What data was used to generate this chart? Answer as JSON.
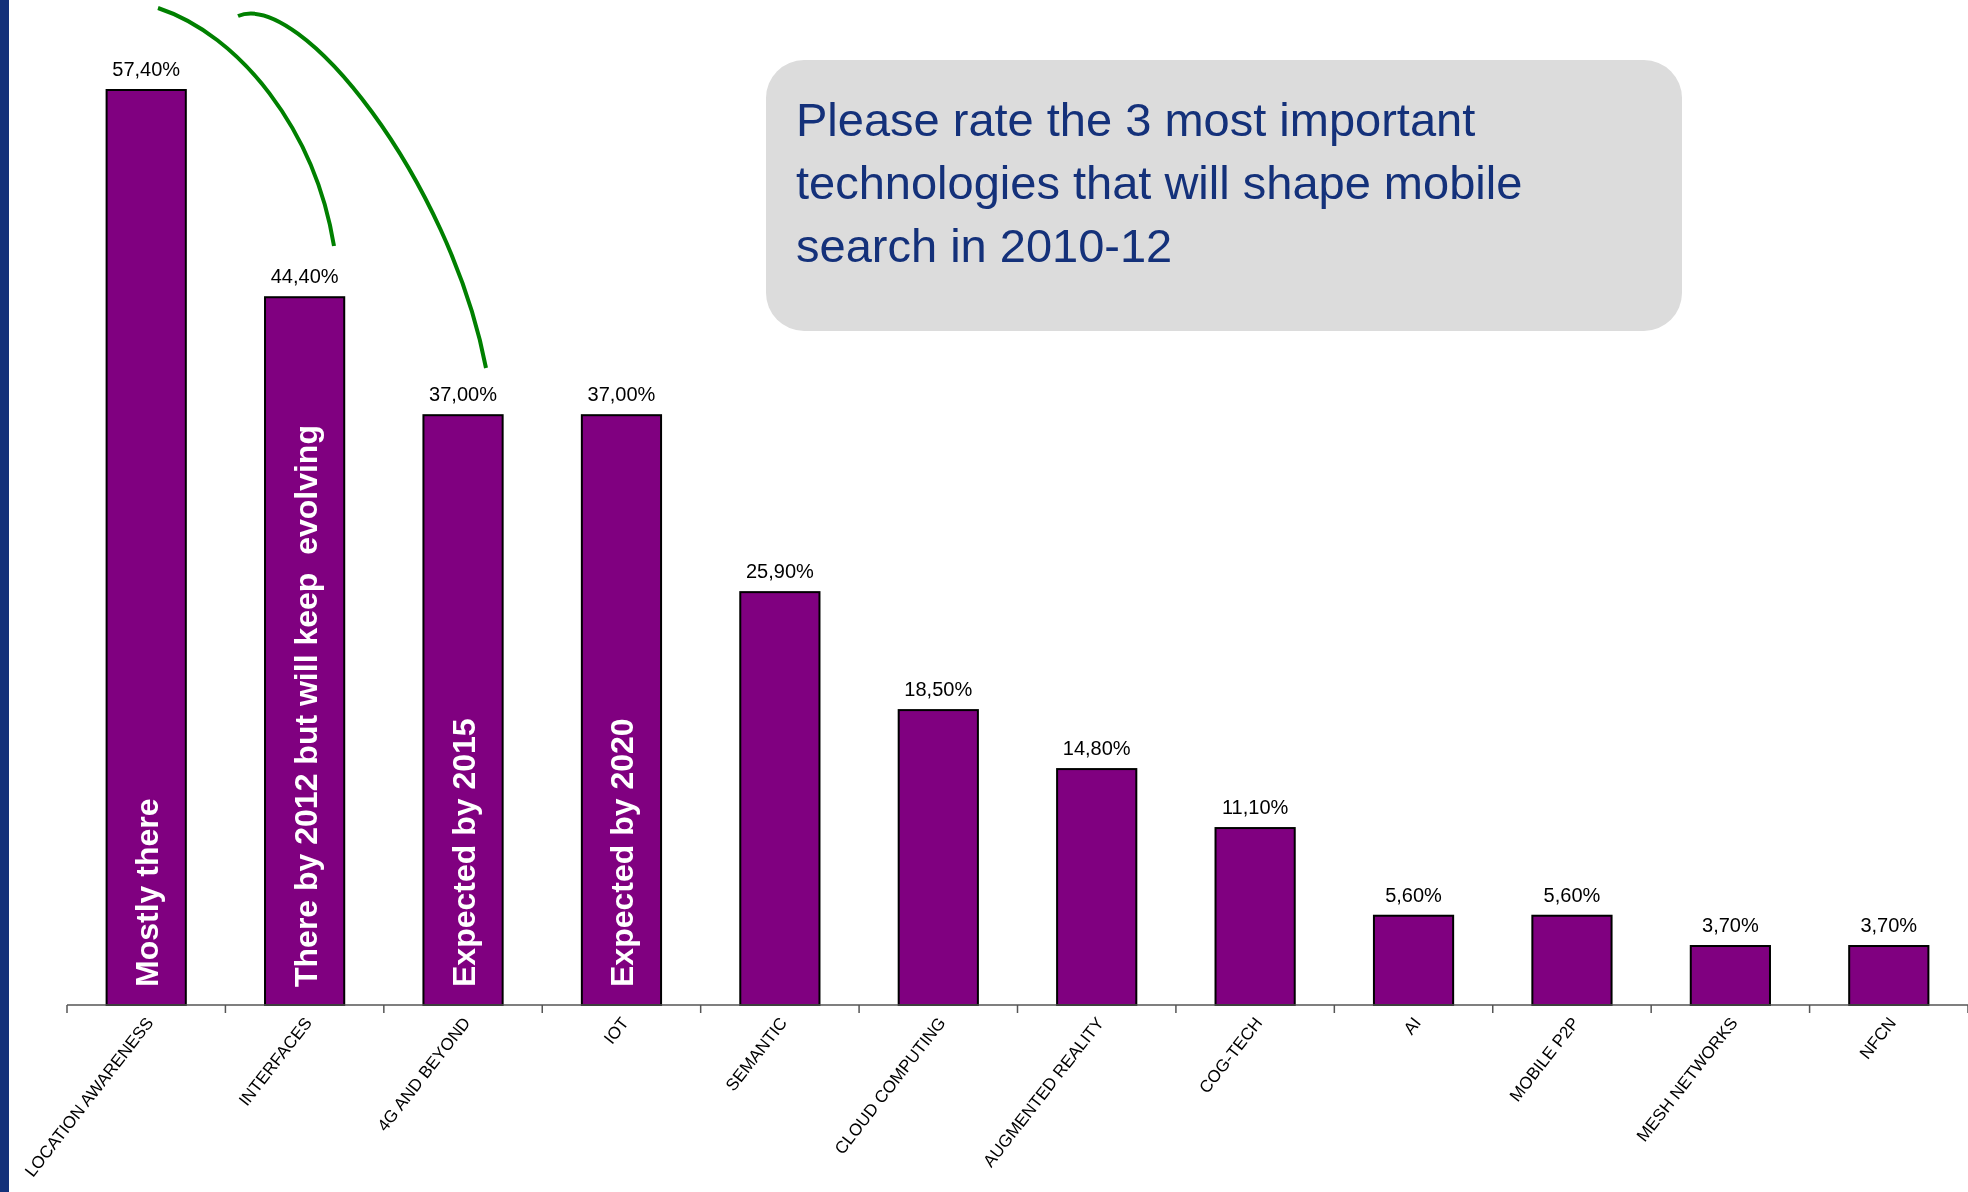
{
  "chart_data": {
    "type": "bar",
    "categories": [
      "LOCATION AWARENESS",
      "INTERFACES",
      "4G AND BEYOND",
      "IOT",
      "SEMANTIC",
      "CLOUD COMPUTING",
      "AUGMENTED REALITY",
      "COG-TECH",
      "AI",
      "MOBILE P2P",
      "MESH NETWORKS",
      "NFCN"
    ],
    "values": [
      57.4,
      44.4,
      37.0,
      37.0,
      25.9,
      18.5,
      14.8,
      11.1,
      5.6,
      5.6,
      3.7,
      3.7
    ],
    "value_labels": [
      "57,40%",
      "44,40%",
      "37,00%",
      "37,00%",
      "25,90%",
      "18,50%",
      "14,80%",
      "11,10%",
      "5,60%",
      "5,60%",
      "3,70%",
      "3,70%"
    ],
    "color": "#800080",
    "annotations": [
      "Mostly there",
      "There by 2012 but will keep  evolving",
      "Expected by 2015",
      "Expected by 2020",
      "Please rate the 3 most important technologies that will shape mobile search in 2010-12"
    ]
  }
}
